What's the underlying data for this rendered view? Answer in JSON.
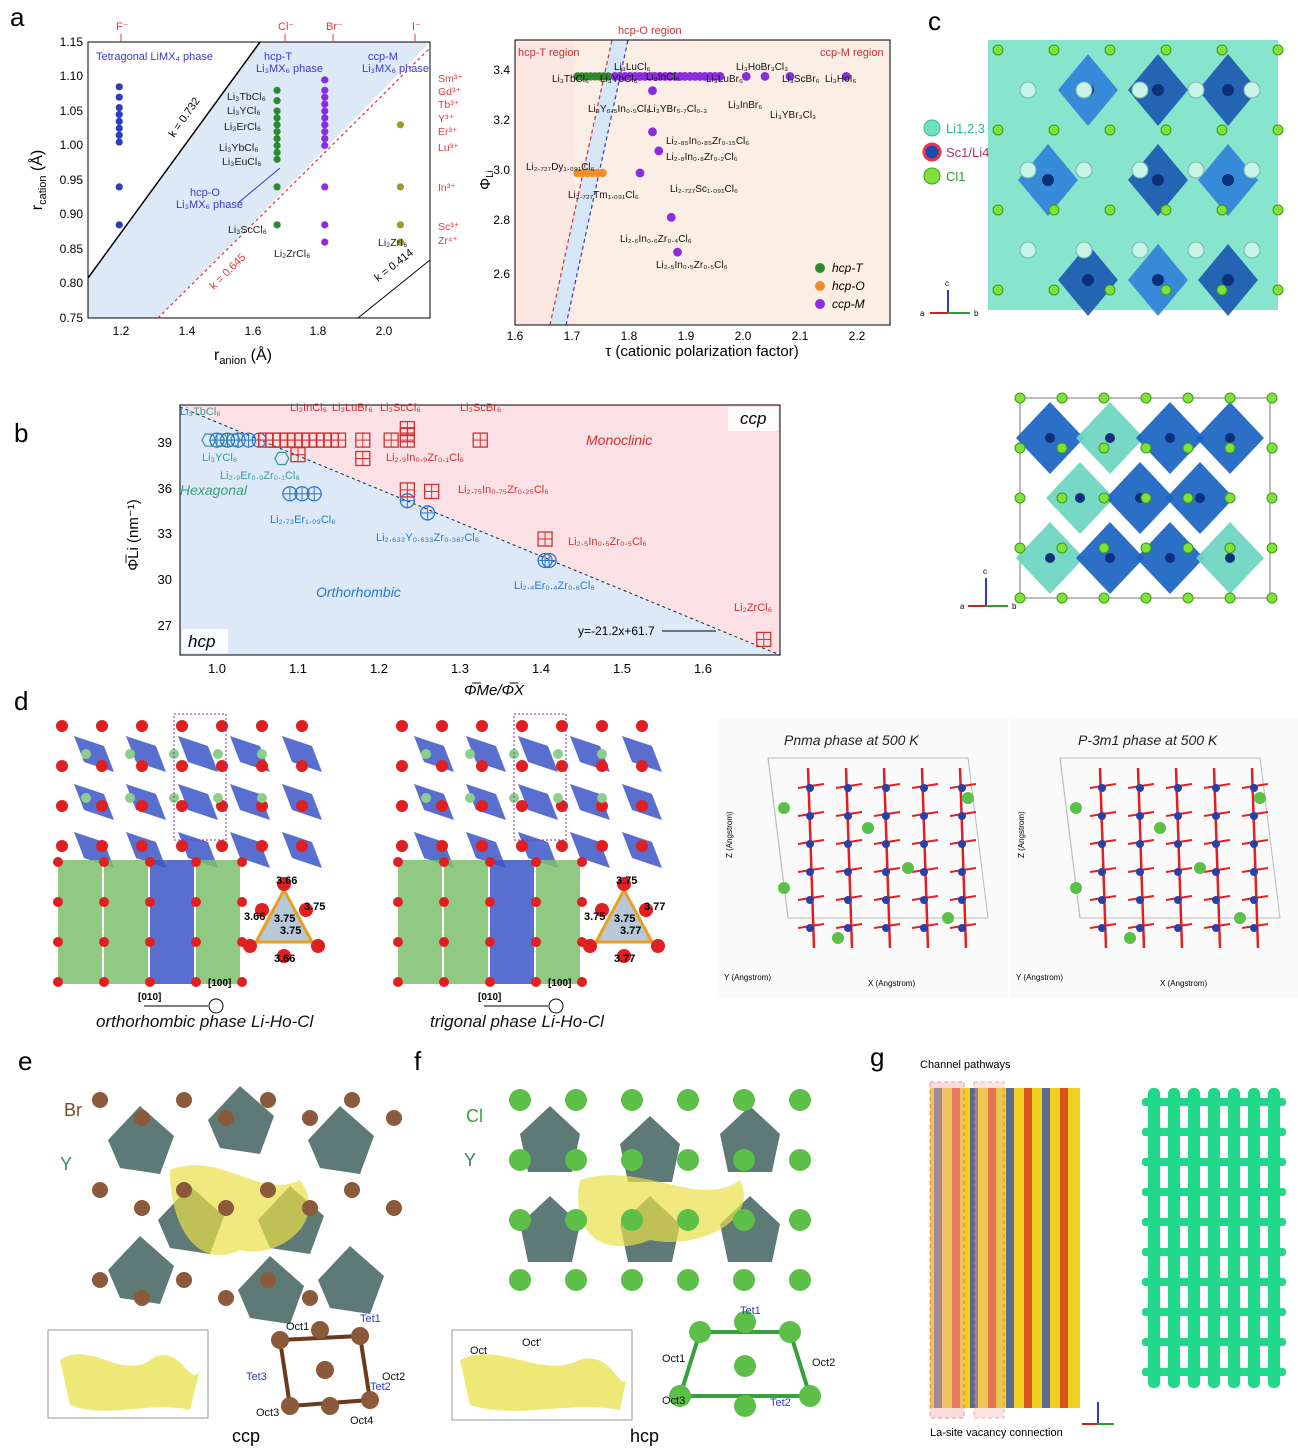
{
  "panels": {
    "a": "a",
    "b": "b",
    "c": "c",
    "d": "d",
    "e": "e",
    "f": "f",
    "g": "g"
  },
  "panel_a_left": {
    "anion_ticks_top": [
      "F⁻",
      "Cl⁻",
      "Br⁻",
      "I⁻"
    ],
    "xlabel_main": "r",
    "xlabel_sub": "anion",
    "xlabel_unit": " (Å)",
    "ylabel_main": "r",
    "ylabel_sub": "cation",
    "ylabel_unit": " (Å)",
    "region_tetragonal": "Tetragonal LiMX₄ phase",
    "region_hcpT_1": "hcp-T",
    "region_hcpT_2": "Li₃MX₆ phase",
    "region_ccpM_1": "ccp-M",
    "region_ccpM_2": "Li₃MX₆ phase",
    "region_hcpO_1": "hcp-O",
    "region_hcpO_2": "Li₃MX₆ phase",
    "k1": "k = 0.732",
    "k2": "k = 0.645",
    "k3": "k = 0.414",
    "compounds": [
      "Li₃TbCl₆",
      "Li₃YCl₆",
      "Li₃ErCl₆",
      "Li₃YbCl₆",
      "Li₃EuCl₆",
      "Li₃ScCl₆",
      "Li₂ZrCl₆",
      "Li₂ZrI₆"
    ],
    "cations_right": [
      "Sm³⁺",
      "Gd³⁺",
      "Tb³⁺",
      "Y³⁺",
      "Er³⁺",
      "Lu³⁺",
      "In³⁺",
      "Sc³⁺",
      "Zr⁴⁺"
    ]
  },
  "panel_a_right": {
    "region_hcpT": "hcp-T region",
    "region_hcpO": "hcp-O region",
    "region_ccpM": "ccp-M region",
    "xlabel": "τ (cationic polarization factor)",
    "ylabel": "Φ",
    "ylabel_sub": "Li",
    "legend": [
      "hcp-T",
      "hcp-O",
      "ccp-M"
    ],
    "labels": [
      "Li₃LuCl₆",
      "Li₃TbCl₆",
      "Li₃YbCl₆",
      "Li₃InCl₆",
      "Li₃LuBr₆",
      "Li₃HoBr₃Cl₃",
      "Li₃ScBr₆",
      "Li₃HoI₆",
      "Li₃Y₀.₅In₀.₅Cl₆",
      "Li₃YBr₅.₇Cl₀.₃",
      "Li₃InBr₆",
      "Li₃YBr₃Cl₃",
      "Li₂.₈₅In₀.₈₅Zr₀.₁₅Cl₆",
      "Li₂.₈In₀.₈Zr₀.₂Cl₆",
      "Li₂.₇₂₇Dy₁.₀₉₁Cl₆",
      "Li₂.₇₂₇Tm₁.₀₉₁Cl₆",
      "Li₂.₇₂₇Sc₁.₀₉₁Cl₆",
      "Li₂.₆In₀.₆Zr₀.₄Cl₆",
      "Li₂.₅In₀.₅Zr₀.₅Cl₆"
    ]
  },
  "panel_b": {
    "ccp": "ccp",
    "hcp": "hcp",
    "monoclinic": "Monoclinic",
    "hexagonal": "Hexagonal",
    "orthorhombic": "Orthorhombic",
    "fit": "y=-21.2x+61.7",
    "ylabel": "Φ̅Li (nm⁻¹)",
    "xlabel": "Φ̅Me/Φ̅X",
    "labels": [
      "Li₃TbCl₆",
      "Li₃InCl₆",
      "Li₃LuBr₆",
      "Li₃ScCl₆",
      "Li₃ScBr₆",
      "Li₃YCl₆",
      "Li₂.₉Er₀.₉Zr₀.₁Cl₆",
      "Li₂.₉In₀.₉Zr₀.₁Cl₆",
      "Li₂.₇₅In₀.₇₅Zr₀.₂₅Cl₆",
      "Li₂.₇₃Er₁.₀₉Cl₆",
      "Li₂.₆₃₃Y₀.₆₃₃Zr₀.₃₆₇Cl₆",
      "Li₂.₅In₀.₅Zr₀.₅Cl₆",
      "Li₂.₄Er₀.₄Zr₀.₆Cl₆",
      "Li₂ZrCl₆"
    ]
  },
  "panel_c": {
    "legend": [
      "Li1,2,3",
      "Sc1/Li4",
      "Cl1"
    ],
    "site_labels": [
      "Li1",
      "Li2",
      "Li3"
    ]
  },
  "panel_d": {
    "cap_ortho": "orthorhombic phase Li-Ho-Cl",
    "cap_trig": "trigonal phase Li-Ho-Cl",
    "dir1": "[010]",
    "dir2": "[100]",
    "dist_ortho": [
      "3.66",
      "3.75",
      "3.66",
      "3.75",
      "3.75",
      "3.66"
    ],
    "dist_trig": [
      "3.75",
      "3.77",
      "3.75",
      "3.75",
      "3.77",
      "3.77"
    ],
    "pnma_title": "Pnma phase at 500 K",
    "p3m1_title": "P-3m1 phase at 500 K",
    "x_axis": "X (Angstrom)",
    "y_axis": "Y (Angstrom)",
    "z_axis": "Z (Angstrom)"
  },
  "panel_e": {
    "br": "Br",
    "y": "Y",
    "cap": "ccp",
    "sites": [
      "Oct1",
      "Tet1",
      "Tet3",
      "Oct2",
      "Oct3",
      "Tet2",
      "Oct4"
    ]
  },
  "panel_f": {
    "cl": "Cl",
    "y": "Y",
    "cap": "hcp",
    "sites": [
      "Oct",
      "Oct'",
      "Tet1",
      "Oct1",
      "Oct2",
      "Oct3",
      "Tet2"
    ]
  },
  "panel_g": {
    "channel": "Channel pathways",
    "vacancy": "La-site vacancy connection"
  }
}
